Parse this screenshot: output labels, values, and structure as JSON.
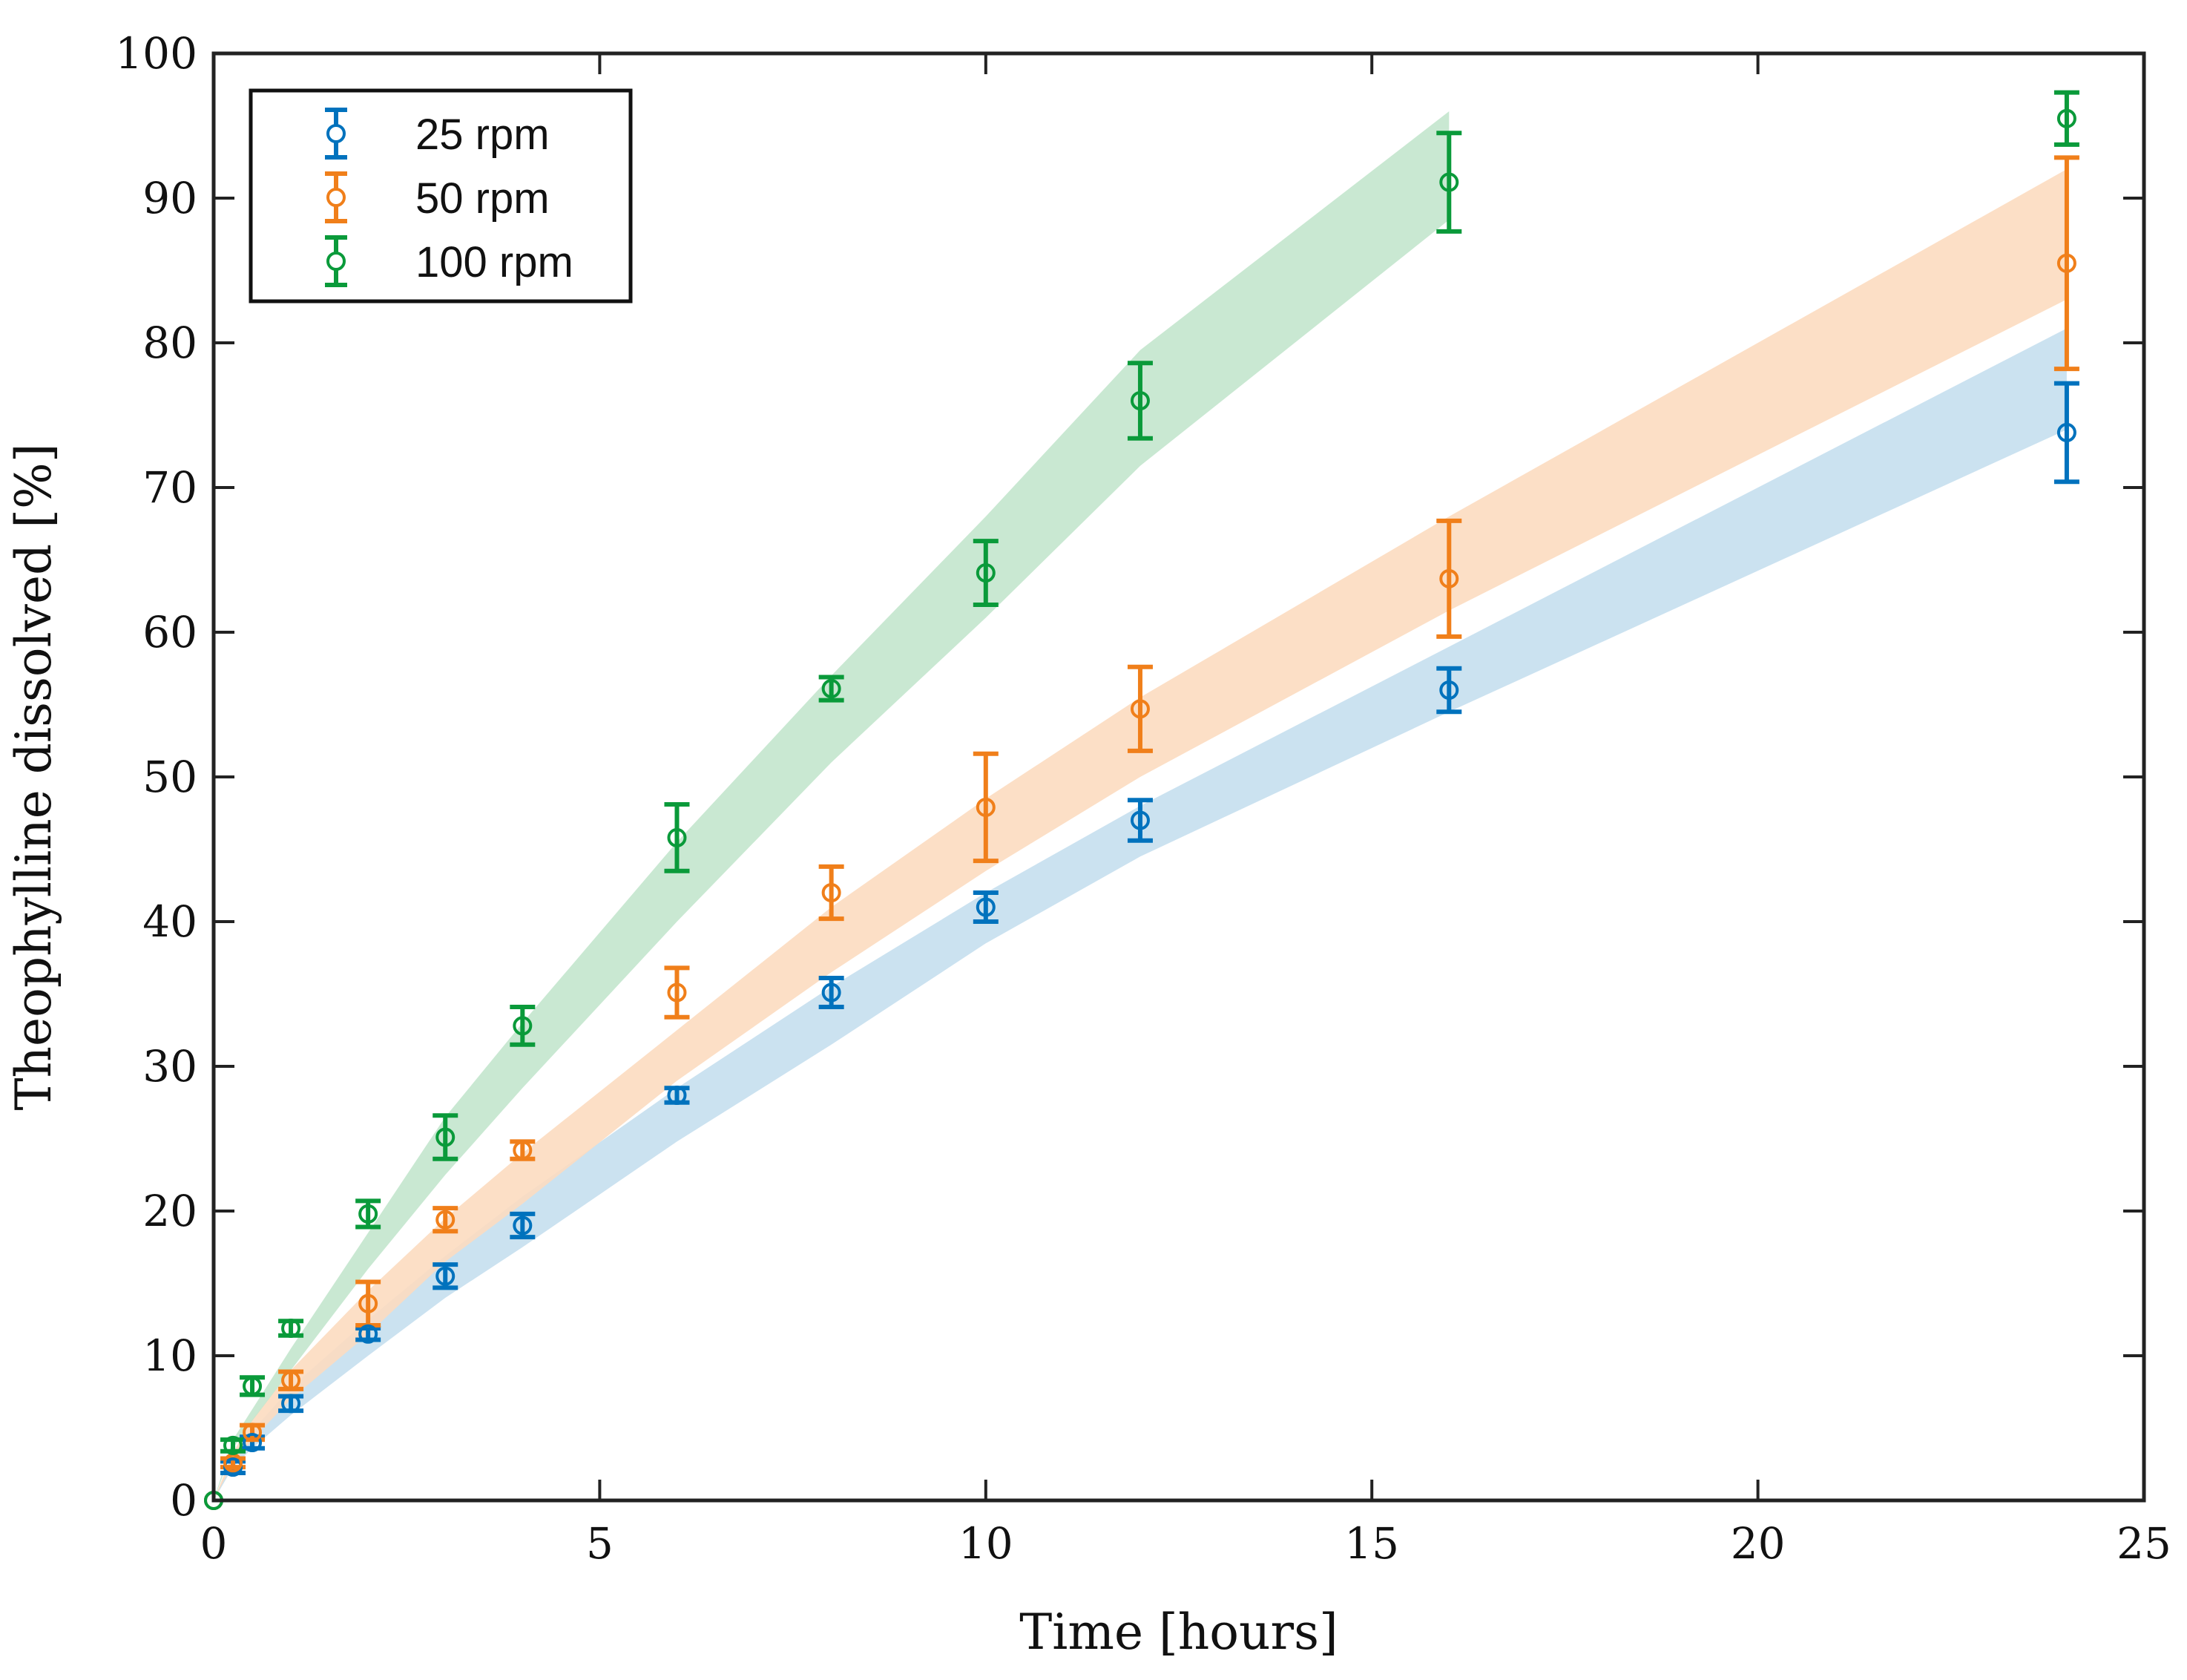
{
  "chart_data": {
    "type": "scatter",
    "title": "",
    "xlabel": "Time [hours]",
    "ylabel": "Theophylline dissolved [%]",
    "xlim": [
      0,
      25
    ],
    "ylim": [
      0,
      100
    ],
    "xticks": [
      0,
      5,
      10,
      15,
      20,
      25
    ],
    "yticks": [
      0,
      10,
      20,
      30,
      40,
      50,
      60,
      70,
      80,
      90,
      100
    ],
    "grid": false,
    "legend_position": "top-left",
    "series": [
      {
        "name": "25 rpm",
        "color": "#0072BD",
        "band_color": "#c5dfee",
        "x": [
          0,
          0.25,
          0.5,
          1,
          2,
          3,
          4,
          6,
          8,
          10,
          12,
          16,
          24
        ],
        "y": [
          0,
          2.3,
          4.0,
          6.7,
          11.5,
          15.5,
          19.0,
          28.0,
          35.1,
          41.0,
          47.0,
          56.0,
          73.8
        ],
        "err": [
          0,
          0.4,
          0.4,
          0.5,
          0.4,
          0.8,
          0.8,
          0.5,
          1.0,
          1.0,
          1.4,
          1.5,
          3.4
        ],
        "band": {
          "x": [
            0,
            0.25,
            0.5,
            1,
            2,
            3,
            4,
            6,
            8,
            10,
            12,
            16,
            24
          ],
          "lower": [
            0,
            2.3,
            3.6,
            5.9,
            10.0,
            14.0,
            17.5,
            24.8,
            31.5,
            38.5,
            44.5,
            54.5,
            74.0
          ],
          "upper": [
            0,
            2.9,
            4.8,
            7.8,
            12.5,
            16.9,
            21.0,
            28.5,
            35.5,
            42.0,
            48.0,
            59.0,
            81.0
          ]
        }
      },
      {
        "name": "50 rpm",
        "color": "#D95319",
        "marker_color": "#f07f1a",
        "band_color": "#fcdcc0",
        "x": [
          0,
          0.25,
          0.5,
          1,
          2,
          3,
          4,
          6,
          8,
          10,
          12,
          16,
          24
        ],
        "y": [
          0,
          2.6,
          4.7,
          8.3,
          13.6,
          19.4,
          24.2,
          35.1,
          42.0,
          47.9,
          54.7,
          63.7,
          85.5
        ],
        "err": [
          0,
          0.3,
          0.5,
          0.6,
          1.5,
          0.8,
          0.6,
          1.7,
          1.8,
          3.7,
          2.9,
          4.0,
          7.3
        ],
        "band": {
          "x": [
            0,
            0.25,
            0.5,
            1,
            2,
            3,
            4,
            6,
            8,
            10,
            12,
            16,
            24
          ],
          "lower": [
            0,
            2.6,
            4.2,
            7.0,
            11.5,
            16.5,
            20.5,
            29.0,
            36.5,
            43.5,
            50.0,
            61.5,
            83.0
          ],
          "upper": [
            0,
            3.3,
            5.6,
            9.0,
            14.5,
            19.5,
            24.0,
            32.5,
            41.0,
            48.5,
            55.5,
            68.0,
            92.0
          ]
        }
      },
      {
        "name": "100 rpm",
        "color": "#0a9a3a",
        "band_color": "#c3e6cd",
        "x": [
          0,
          0.25,
          0.5,
          1,
          2,
          3,
          4,
          6,
          8,
          10,
          12,
          16,
          24
        ],
        "y": [
          0,
          3.8,
          7.9,
          11.9,
          19.8,
          25.1,
          32.8,
          45.8,
          56.1,
          64.1,
          76.0,
          91.1,
          95.5
        ],
        "err": [
          0,
          0.4,
          0.6,
          0.5,
          0.9,
          1.5,
          1.3,
          2.3,
          0.8,
          2.2,
          2.6,
          3.4,
          1.8
        ],
        "band": {
          "x": [
            0,
            0.25,
            0.5,
            1,
            2,
            3,
            4,
            6,
            8,
            10,
            12,
            16
          ],
          "lower": [
            0,
            3.6,
            5.5,
            9.0,
            16.0,
            22.5,
            28.5,
            40.0,
            51.0,
            61.0,
            71.5,
            88.5
          ],
          "upper": [
            0,
            4.2,
            6.3,
            10.5,
            18.5,
            26.5,
            33.0,
            45.5,
            57.0,
            68.0,
            79.5,
            96.0
          ]
        }
      }
    ]
  }
}
